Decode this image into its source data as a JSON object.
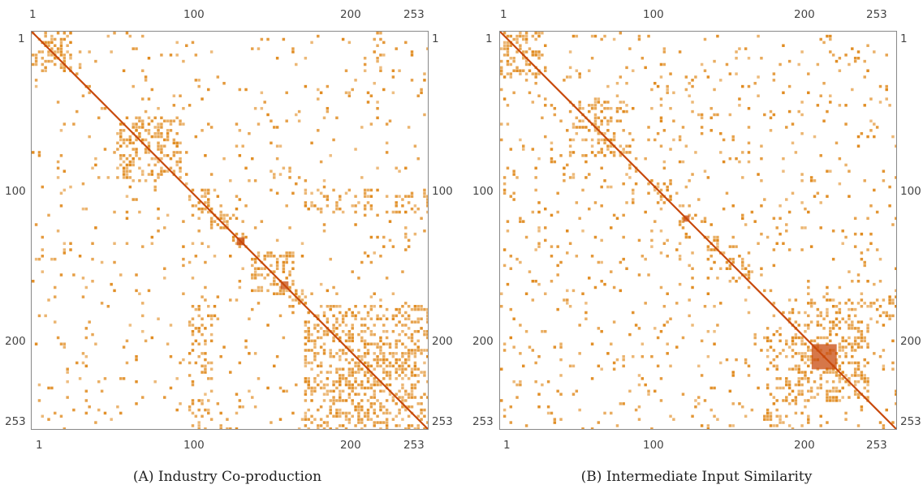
{
  "chart_data": [
    {
      "type": "heatmap",
      "panel_letter": "A",
      "title": "Industry Co-production",
      "matrix_size": 253,
      "ticks": [
        "1",
        "100",
        "200",
        "253"
      ],
      "tick_values": [
        1,
        100,
        200,
        253
      ],
      "color": "#e08a1e",
      "color_strong": "#c8490c",
      "diagonal": true,
      "blocks": [
        {
          "r": [
            1,
            25
          ],
          "c": [
            1,
            25
          ],
          "density": 0.75
        },
        {
          "r": [
            55,
            95
          ],
          "c": [
            55,
            95
          ],
          "density": 0.7
        },
        {
          "r": [
            100,
            115
          ],
          "c": [
            100,
            115
          ],
          "density": 0.85
        },
        {
          "r": [
            115,
            125
          ],
          "c": [
            115,
            125
          ],
          "density": 0.85
        },
        {
          "r": [
            128,
            138
          ],
          "c": [
            128,
            138
          ],
          "density": 0.95
        },
        {
          "r": [
            140,
            168
          ],
          "c": [
            140,
            168
          ],
          "density": 0.75
        },
        {
          "r": [
            165,
            175
          ],
          "c": [
            165,
            175
          ],
          "density": 0.9
        },
        {
          "r": [
            175,
            253
          ],
          "c": [
            175,
            253
          ],
          "density": 0.55
        },
        {
          "r": [
            190,
            245
          ],
          "c": [
            190,
            245
          ],
          "density": 0.8
        },
        {
          "r": [
            175,
            253
          ],
          "c": [
            100,
            115
          ],
          "density": 0.45
        },
        {
          "r": [
            100,
            115
          ],
          "c": [
            175,
            253
          ],
          "density": 0.4
        }
      ],
      "hotspots": [
        {
          "r": [
            132,
            136
          ],
          "c": [
            132,
            136
          ]
        },
        {
          "r": [
            160,
            164
          ],
          "c": [
            160,
            164
          ]
        }
      ],
      "background_density": 0.07
    },
    {
      "type": "heatmap",
      "panel_letter": "B",
      "title": "Intermediate Input Similarity",
      "matrix_size": 253,
      "ticks": [
        "1",
        "100",
        "200",
        "253"
      ],
      "tick_values": [
        1,
        100,
        200,
        253
      ],
      "color": "#e08a1e",
      "color_strong": "#c8490c",
      "diagonal": true,
      "blocks": [
        {
          "r": [
            1,
            30
          ],
          "c": [
            1,
            30
          ],
          "density": 0.65
        },
        {
          "r": [
            45,
            80
          ],
          "c": [
            45,
            80
          ],
          "density": 0.6
        },
        {
          "r": [
            95,
            110
          ],
          "c": [
            95,
            110
          ],
          "density": 0.65
        },
        {
          "r": [
            115,
            125
          ],
          "c": [
            115,
            125
          ],
          "density": 0.7
        },
        {
          "r": [
            130,
            140
          ],
          "c": [
            130,
            140
          ],
          "density": 0.8
        },
        {
          "r": [
            145,
            160
          ],
          "c": [
            145,
            160
          ],
          "density": 0.7
        },
        {
          "r": [
            185,
            235
          ],
          "c": [
            185,
            235
          ],
          "density": 0.7
        },
        {
          "r": [
            185,
            253
          ],
          "c": [
            170,
            185
          ],
          "density": 0.45
        },
        {
          "r": [
            170,
            185
          ],
          "c": [
            185,
            253
          ],
          "density": 0.45
        }
      ],
      "hotspots": [
        {
          "r": [
            118,
            121
          ],
          "c": [
            118,
            121
          ]
        },
        {
          "r": [
            200,
            215
          ],
          "c": [
            200,
            215
          ]
        }
      ],
      "background_density": 0.1
    }
  ]
}
